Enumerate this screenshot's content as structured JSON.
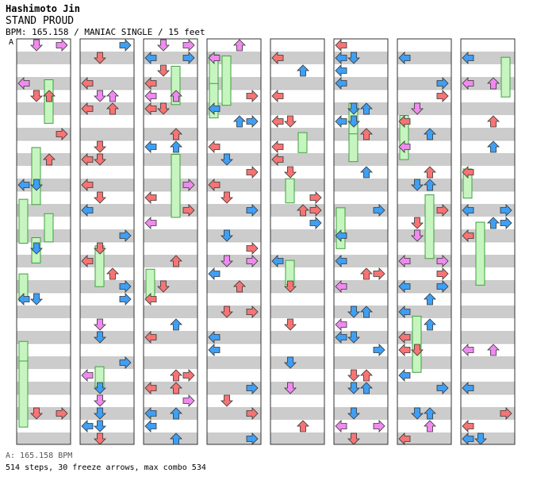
{
  "artist": "Hashimoto Jin",
  "title": "STAND PROUD",
  "info": "BPM: 165.158 / MANIAC SINGLE / 15 feet",
  "marker": "A",
  "footer_bpm": "A: 165.158 BPM",
  "footer_stats": "514 steps, 30 freeze arrows, max combo 534",
  "colors": {
    "band": "#cccccc",
    "lane_border": "#333333",
    "quarter": "#f77474",
    "eighth": "#3f9ff4",
    "sixteenth": "#f08af0",
    "freeze": "#c6f5c0",
    "freeze_border": "#40a040"
  },
  "chart_data": {
    "type": "table",
    "columns": 8,
    "note_kinds": [
      "quarter",
      "eighth",
      "sixteenth"
    ],
    "lanes": [
      "left",
      "down",
      "up",
      "right"
    ]
  }
}
